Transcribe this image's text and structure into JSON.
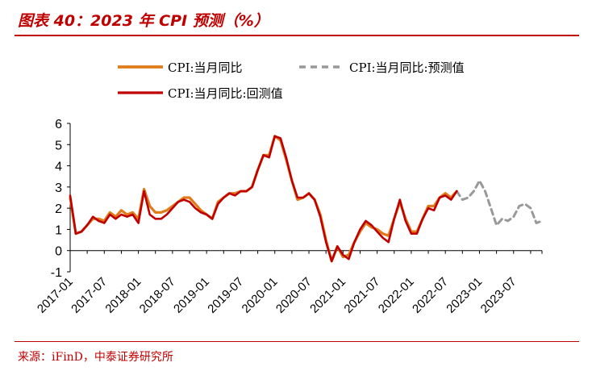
{
  "header": {
    "title": "图表 40：2023 年 CPI 预测（%）"
  },
  "footer": {
    "source": "来源：iFinD，中泰证券研究所"
  },
  "colors": {
    "accent": "#c00000",
    "actual": "#e07b1a",
    "forecast": "#999999",
    "backtest": "#c00000"
  },
  "chart_data": {
    "type": "line",
    "title": "2023 年 CPI 预测（%）",
    "xlabel": "",
    "ylabel": "",
    "ylim": [
      -1,
      6
    ],
    "yticks": [
      "-1",
      "0",
      "1",
      "2",
      "3",
      "4",
      "5",
      "6"
    ],
    "xticks": [
      {
        "i": 0,
        "label": "2017-01"
      },
      {
        "i": 6,
        "label": "2017-07"
      },
      {
        "i": 12,
        "label": "2018-01"
      },
      {
        "i": 18,
        "label": "2018-07"
      },
      {
        "i": 24,
        "label": "2019-01"
      },
      {
        "i": 30,
        "label": "2019-07"
      },
      {
        "i": 36,
        "label": "2020-01"
      },
      {
        "i": 42,
        "label": "2020-07"
      },
      {
        "i": 48,
        "label": "2021-01"
      },
      {
        "i": 54,
        "label": "2021-07"
      },
      {
        "i": 60,
        "label": "2022-01"
      },
      {
        "i": 66,
        "label": "2022-07"
      },
      {
        "i": 72,
        "label": "2023-01"
      },
      {
        "i": 78,
        "label": "2023-07"
      }
    ],
    "x_count": 84,
    "legend": [
      "CPI:当月同比",
      "CPI:当月同比:预测值",
      "CPI:当月同比:回测值"
    ],
    "series": [
      {
        "name": "CPI:当月同比",
        "start": 0,
        "values": [
          2.5,
          0.8,
          0.9,
          1.2,
          1.5,
          1.5,
          1.4,
          1.8,
          1.6,
          1.9,
          1.7,
          1.8,
          1.5,
          2.9,
          2.1,
          1.8,
          1.8,
          1.9,
          2.1,
          2.3,
          2.5,
          2.5,
          2.2,
          1.9,
          1.7,
          1.5,
          2.3,
          2.5,
          2.7,
          2.7,
          2.8,
          2.8,
          3.0,
          3.8,
          4.5,
          4.5,
          5.4,
          5.2,
          4.3,
          3.3,
          2.4,
          2.5,
          2.7,
          2.4,
          1.7,
          0.5,
          -0.5,
          0.2,
          -0.3,
          -0.2,
          0.4,
          0.9,
          1.3,
          1.1,
          1.0,
          0.8,
          0.7,
          1.5,
          2.3,
          1.5,
          0.9,
          0.9,
          1.5,
          2.1,
          2.1,
          2.5,
          2.7,
          2.5,
          2.8
        ]
      },
      {
        "name": "CPI:当月同比:预测值",
        "start": 68,
        "values": [
          2.8,
          2.4,
          2.5,
          2.8,
          3.3,
          2.8,
          2.0,
          1.2,
          1.5,
          1.4,
          1.6,
          2.1,
          2.2,
          2.0,
          1.3,
          1.4
        ]
      },
      {
        "name": "CPI:当月同比:回测值",
        "start": 0,
        "values": [
          2.6,
          0.8,
          0.9,
          1.2,
          1.6,
          1.4,
          1.3,
          1.7,
          1.5,
          1.7,
          1.6,
          1.7,
          1.3,
          2.8,
          1.7,
          1.5,
          1.5,
          1.7,
          2.0,
          2.3,
          2.4,
          2.3,
          2.0,
          1.8,
          1.7,
          1.5,
          2.2,
          2.5,
          2.7,
          2.6,
          2.8,
          2.8,
          3.0,
          3.8,
          4.5,
          4.4,
          5.4,
          5.3,
          4.4,
          3.3,
          2.5,
          2.5,
          2.7,
          2.4,
          1.6,
          0.4,
          -0.5,
          0.2,
          -0.2,
          -0.4,
          0.4,
          1.0,
          1.4,
          1.2,
          0.9,
          0.6,
          0.4,
          1.5,
          2.4,
          1.4,
          0.8,
          0.8,
          1.5,
          2.0,
          1.9,
          2.5,
          2.6,
          2.4,
          2.8
        ]
      }
    ]
  }
}
